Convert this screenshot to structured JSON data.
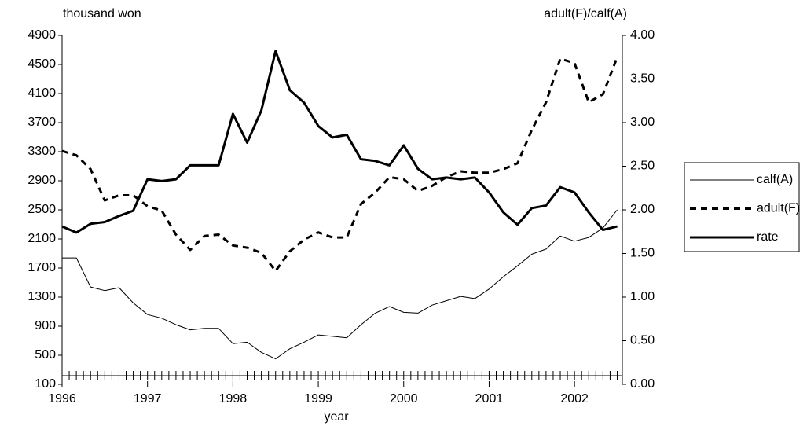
{
  "chart_data": {
    "type": "line",
    "y_label": "thousand won",
    "y2_label": "adult(F)/calf(A)",
    "x_label": "year",
    "x": [
      1996,
      1996.167,
      1996.333,
      1996.5,
      1996.667,
      1996.833,
      1997,
      1997.167,
      1997.333,
      1997.5,
      1997.667,
      1997.833,
      1998,
      1998.167,
      1998.333,
      1998.5,
      1998.667,
      1998.833,
      1999,
      1999.167,
      1999.333,
      1999.5,
      1999.667,
      1999.833,
      2000,
      2000.167,
      2000.333,
      2000.5,
      2000.667,
      2000.833,
      2001,
      2001.167,
      2001.333,
      2001.5,
      2001.667,
      2001.833,
      2002,
      2002.167,
      2002.333,
      2002.5
    ],
    "xlim": [
      1996,
      2002.56
    ],
    "xticks": [
      1996,
      1997,
      1998,
      1999,
      2000,
      2001,
      2002
    ],
    "ylim": [
      100,
      4900
    ],
    "yticks": [
      100,
      500,
      900,
      1300,
      1700,
      2100,
      2500,
      2900,
      3300,
      3700,
      4100,
      4500,
      4900
    ],
    "y2lim": [
      0,
      4
    ],
    "y2ticks": [
      {
        "value": 0,
        "label": "0.00"
      },
      {
        "value": 0.5,
        "label": "0.50"
      },
      {
        "value": 1,
        "label": "1.00"
      },
      {
        "value": 1.5,
        "label": "1.50"
      },
      {
        "value": 2,
        "label": "2.00"
      },
      {
        "value": 2.5,
        "label": "2.50"
      },
      {
        "value": 3,
        "label": "3.00"
      },
      {
        "value": 3.5,
        "label": "3.50"
      },
      {
        "value": 4,
        "label": "4.00"
      }
    ],
    "legend": "right",
    "series": [
      {
        "name": "calf(A)",
        "color": "#000000",
        "line_style": "thin",
        "values": [
          1840,
          1840,
          1440,
          1390,
          1430,
          1220,
          1060,
          1010,
          920,
          850,
          870,
          870,
          660,
          680,
          540,
          450,
          590,
          680,
          780,
          760,
          740,
          920,
          1080,
          1170,
          1090,
          1080,
          1190,
          1250,
          1310,
          1280,
          1410,
          1580,
          1730,
          1890,
          1960,
          2140,
          2070,
          2120,
          2250,
          2500
        ]
      },
      {
        "name": "adult(F)",
        "color": "#000000",
        "line_style": "dashed",
        "values": [
          3310,
          3250,
          3060,
          2630,
          2700,
          2700,
          2550,
          2490,
          2160,
          1950,
          2140,
          2160,
          2010,
          1980,
          1910,
          1660,
          1930,
          2090,
          2190,
          2120,
          2120,
          2580,
          2740,
          2950,
          2920,
          2760,
          2830,
          2950,
          3030,
          3010,
          3010,
          3060,
          3140,
          3600,
          3980,
          4580,
          4520,
          3980,
          4090,
          4600
        ]
      },
      {
        "name": "rate",
        "color": "#000000",
        "line_style": "thick",
        "axis": "y2",
        "values": [
          1.81,
          1.74,
          1.84,
          1.86,
          1.93,
          1.99,
          2.35,
          2.33,
          2.35,
          2.51,
          2.51,
          2.51,
          3.1,
          2.77,
          3.14,
          3.82,
          3.37,
          3.23,
          2.96,
          2.83,
          2.86,
          2.58,
          2.56,
          2.51,
          2.74,
          2.47,
          2.35,
          2.37,
          2.35,
          2.37,
          2.2,
          1.97,
          1.83,
          2.02,
          2.05,
          2.26,
          2.2,
          1.97,
          1.77,
          1.81
        ]
      }
    ]
  }
}
